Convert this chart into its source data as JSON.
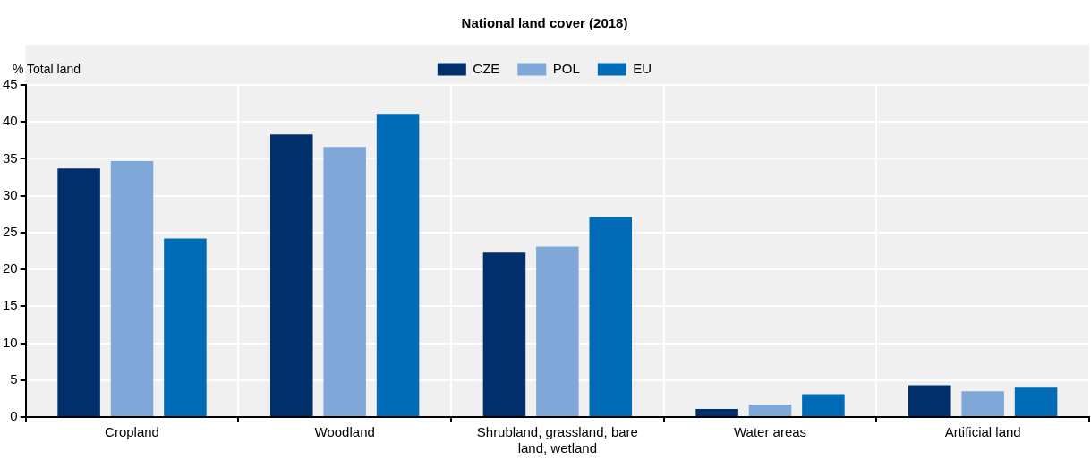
{
  "chart_data": {
    "type": "bar",
    "title": "National land cover (2018)",
    "ylabel": "% Total land",
    "categories": [
      "Cropland",
      "Woodland",
      "Shrubland, grassland, bare land, wetland",
      "Water areas",
      "Artificial land"
    ],
    "series": [
      {
        "name": "CZE",
        "color": "#002f6c",
        "values": [
          33.7,
          38.3,
          22.3,
          1.1,
          4.3
        ]
      },
      {
        "name": "POL",
        "color": "#7fa8d9",
        "values": [
          34.7,
          36.6,
          23.1,
          1.7,
          3.5
        ]
      },
      {
        "name": "EU",
        "color": "#006bb6",
        "values": [
          24.2,
          41.1,
          27.1,
          3.1,
          4.1
        ]
      }
    ],
    "ylim": [
      0,
      45
    ],
    "yticks": [
      0,
      5,
      10,
      15,
      20,
      25,
      30,
      35,
      40,
      45
    ],
    "grid": true,
    "legend": "top"
  }
}
